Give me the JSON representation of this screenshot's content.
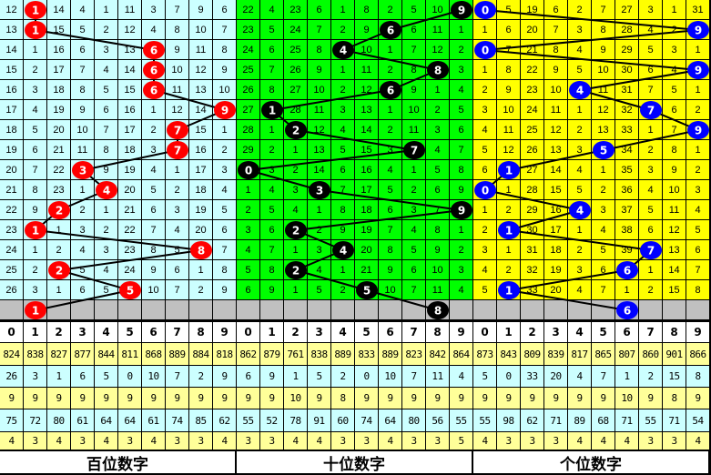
{
  "chart_data": {
    "type": "table",
    "columns": [
      "0",
      "1",
      "2",
      "3",
      "4",
      "5",
      "6",
      "7",
      "8",
      "9"
    ],
    "panels": [
      {
        "label": "百位数字",
        "bg": "#ccffff",
        "ball_color": "#ff0000",
        "rows": [
          [
            12,
            1,
            14,
            4,
            1,
            11,
            3,
            7,
            9,
            6
          ],
          [
            13,
            1,
            15,
            5,
            2,
            12,
            4,
            8,
            10,
            7
          ],
          [
            14,
            1,
            16,
            6,
            3,
            13,
            6,
            9,
            11,
            8
          ],
          [
            15,
            2,
            17,
            7,
            4,
            14,
            6,
            10,
            12,
            9
          ],
          [
            16,
            3,
            18,
            8,
            5,
            15,
            6,
            11,
            13,
            10
          ],
          [
            17,
            4,
            19,
            9,
            6,
            16,
            1,
            12,
            14,
            9
          ],
          [
            18,
            5,
            20,
            10,
            7,
            17,
            2,
            7,
            15,
            1
          ],
          [
            19,
            6,
            21,
            11,
            8,
            18,
            3,
            7,
            16,
            2
          ],
          [
            20,
            7,
            22,
            3,
            9,
            19,
            4,
            1,
            17,
            3
          ],
          [
            21,
            8,
            23,
            1,
            4,
            20,
            5,
            2,
            18,
            4
          ],
          [
            22,
            9,
            2,
            2,
            1,
            21,
            6,
            3,
            19,
            5
          ],
          [
            23,
            1,
            1,
            3,
            2,
            22,
            7,
            4,
            20,
            6
          ],
          [
            24,
            1,
            2,
            4,
            3,
            23,
            8,
            5,
            8,
            7
          ],
          [
            25,
            2,
            2,
            5,
            4,
            24,
            9,
            6,
            1,
            8
          ],
          [
            26,
            3,
            1,
            6,
            5,
            5,
            10,
            7,
            2,
            9
          ]
        ],
        "draws": [
          1,
          1,
          6,
          6,
          6,
          9,
          7,
          7,
          3,
          4,
          2,
          1,
          8,
          2,
          5
        ],
        "next": 1,
        "stats": [
          [
            824,
            838,
            827,
            877,
            844,
            811,
            868,
            889,
            884,
            818
          ],
          [
            26,
            3,
            1,
            6,
            5,
            0,
            10,
            7,
            2,
            9
          ],
          [
            9,
            9,
            9,
            9,
            9,
            9,
            9,
            9,
            9,
            9
          ],
          [
            75,
            72,
            80,
            61,
            64,
            64,
            61,
            74,
            85,
            62
          ],
          [
            4,
            3,
            4,
            3,
            4,
            3,
            4,
            3,
            3,
            4
          ]
        ]
      },
      {
        "label": "十位数字",
        "bg": "#00ff00",
        "ball_color": "#000000",
        "rows": [
          [
            22,
            4,
            23,
            6,
            1,
            8,
            2,
            5,
            10,
            9
          ],
          [
            23,
            5,
            24,
            7,
            2,
            9,
            6,
            6,
            11,
            1
          ],
          [
            24,
            6,
            25,
            8,
            4,
            10,
            1,
            7,
            12,
            2
          ],
          [
            25,
            7,
            26,
            9,
            1,
            11,
            2,
            8,
            8,
            3
          ],
          [
            26,
            8,
            27,
            10,
            2,
            12,
            6,
            9,
            1,
            4
          ],
          [
            27,
            1,
            28,
            11,
            3,
            13,
            1,
            10,
            2,
            5
          ],
          [
            28,
            1,
            2,
            12,
            4,
            14,
            2,
            11,
            3,
            6
          ],
          [
            29,
            2,
            1,
            13,
            5,
            15,
            3,
            7,
            4,
            7
          ],
          [
            0,
            3,
            2,
            14,
            6,
            16,
            4,
            1,
            5,
            8
          ],
          [
            1,
            4,
            3,
            3,
            7,
            17,
            5,
            2,
            6,
            9
          ],
          [
            2,
            5,
            4,
            1,
            8,
            18,
            6,
            3,
            7,
            9
          ],
          [
            3,
            6,
            2,
            2,
            9,
            19,
            7,
            4,
            8,
            1
          ],
          [
            4,
            7,
            1,
            3,
            4,
            20,
            8,
            5,
            9,
            2
          ],
          [
            5,
            8,
            2,
            4,
            1,
            21,
            9,
            6,
            10,
            3
          ],
          [
            6,
            9,
            1,
            5,
            2,
            5,
            10,
            7,
            11,
            4
          ]
        ],
        "draws": [
          9,
          6,
          4,
          8,
          6,
          1,
          2,
          7,
          0,
          3,
          9,
          2,
          4,
          2,
          5
        ],
        "next": 8,
        "stats": [
          [
            862,
            879,
            761,
            838,
            889,
            833,
            889,
            823,
            842,
            864
          ],
          [
            6,
            9,
            1,
            5,
            2,
            0,
            10,
            7,
            11,
            4
          ],
          [
            9,
            9,
            10,
            9,
            8,
            9,
            9,
            9,
            9,
            9
          ],
          [
            55,
            52,
            78,
            91,
            60,
            74,
            64,
            80,
            56,
            55
          ],
          [
            3,
            3,
            4,
            4,
            3,
            3,
            4,
            3,
            3,
            5
          ]
        ]
      },
      {
        "label": "个位数字",
        "bg": "#ffff00",
        "ball_color": "#0000ff",
        "rows": [
          [
            0,
            5,
            19,
            6,
            2,
            7,
            27,
            3,
            1,
            31
          ],
          [
            1,
            6,
            20,
            7,
            3,
            8,
            28,
            4,
            2,
            9
          ],
          [
            0,
            7,
            21,
            8,
            4,
            9,
            29,
            5,
            3,
            1
          ],
          [
            1,
            8,
            22,
            9,
            5,
            10,
            30,
            6,
            4,
            9
          ],
          [
            2,
            9,
            23,
            10,
            4,
            11,
            31,
            7,
            5,
            1
          ],
          [
            3,
            10,
            24,
            11,
            1,
            12,
            32,
            7,
            6,
            2
          ],
          [
            4,
            11,
            25,
            12,
            2,
            13,
            33,
            1,
            7,
            9
          ],
          [
            5,
            12,
            26,
            13,
            3,
            5,
            34,
            2,
            8,
            1
          ],
          [
            6,
            1,
            27,
            14,
            4,
            1,
            35,
            3,
            9,
            2
          ],
          [
            0,
            1,
            28,
            15,
            5,
            2,
            36,
            4,
            10,
            3
          ],
          [
            1,
            2,
            29,
            16,
            4,
            3,
            37,
            5,
            11,
            4
          ],
          [
            2,
            1,
            30,
            17,
            1,
            4,
            38,
            6,
            12,
            5
          ],
          [
            3,
            1,
            31,
            18,
            2,
            5,
            39,
            7,
            13,
            6
          ],
          [
            4,
            2,
            32,
            19,
            3,
            6,
            6,
            1,
            14,
            7
          ],
          [
            5,
            1,
            33,
            20,
            4,
            7,
            1,
            2,
            15,
            8
          ]
        ],
        "draws": [
          0,
          9,
          0,
          9,
          4,
          7,
          9,
          5,
          1,
          0,
          4,
          1,
          7,
          6,
          1
        ],
        "next": 6,
        "stats": [
          [
            873,
            843,
            809,
            839,
            817,
            865,
            807,
            860,
            901,
            866
          ],
          [
            5,
            0,
            33,
            20,
            4,
            7,
            1,
            2,
            15,
            8
          ],
          [
            9,
            9,
            9,
            9,
            9,
            9,
            10,
            9,
            8,
            9
          ],
          [
            55,
            98,
            62,
            71,
            89,
            68,
            71,
            55,
            71,
            54
          ],
          [
            4,
            3,
            3,
            3,
            4,
            4,
            4,
            3,
            3,
            4
          ]
        ]
      }
    ],
    "colors": {
      "stat_yellow": "#ffff99",
      "stat_cyan": "#ccffff",
      "pending_row": "#c0c0c0"
    }
  }
}
